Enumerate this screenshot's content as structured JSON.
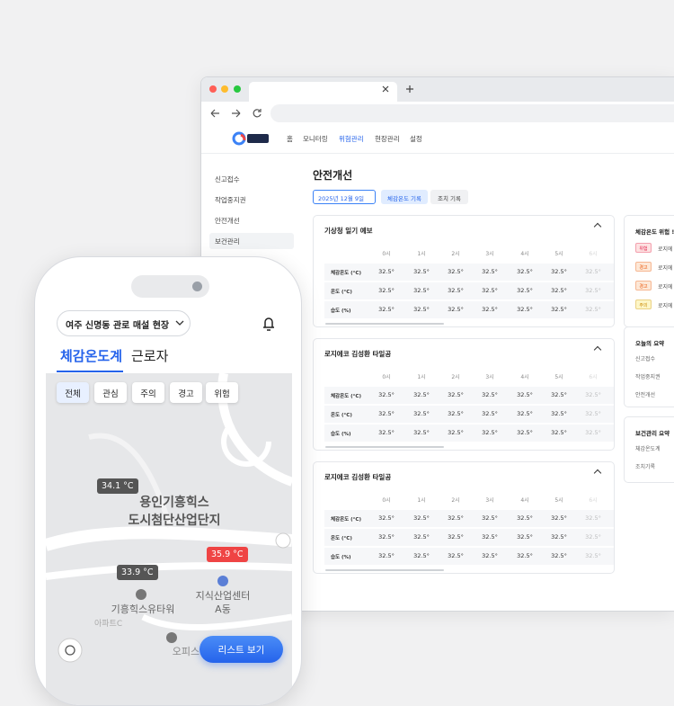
{
  "nav": {
    "items": [
      "홈",
      "모니터링",
      "위험관리",
      "현장관리",
      "설정"
    ],
    "active": 2
  },
  "sidebar": {
    "items": [
      "신고접수",
      "작업중지권",
      "안전개선",
      "보건관리"
    ],
    "active": 3
  },
  "page_title": "안전개선",
  "filters": {
    "date": "2025년 12월 9일",
    "buttons": [
      "체감온도 기록",
      "조치 기록"
    ]
  },
  "cards": [
    {
      "title": "기상청 일기 예보",
      "columns": [
        "0시",
        "1시",
        "2시",
        "3시",
        "4시",
        "5시",
        "6시"
      ],
      "rows": [
        {
          "label": "체감온도 (°C)",
          "values": [
            "32.5°",
            "32.5°",
            "32.5°",
            "32.5°",
            "32.5°",
            "32.5°",
            "32.5°"
          ]
        },
        {
          "label": "온도 (°C)",
          "values": [
            "32.5°",
            "32.5°",
            "32.5°",
            "32.5°",
            "32.5°",
            "32.5°",
            "32.5°"
          ]
        },
        {
          "label": "습도 (%)",
          "values": [
            "32.5°",
            "32.5°",
            "32.5°",
            "32.5°",
            "32.5°",
            "32.5°",
            "32.5°"
          ]
        }
      ]
    },
    {
      "title": "로지에코 김성환 타일공",
      "columns": [
        "0시",
        "1시",
        "2시",
        "3시",
        "4시",
        "5시",
        "6시"
      ],
      "rows": [
        {
          "label": "체감온도 (°C)",
          "values": [
            "32.5°",
            "32.5°",
            "32.5°",
            "32.5°",
            "32.5°",
            "32.5°",
            "32.5°"
          ]
        },
        {
          "label": "온도 (°C)",
          "values": [
            "32.5°",
            "32.5°",
            "32.5°",
            "32.5°",
            "32.5°",
            "32.5°",
            "32.5°"
          ]
        },
        {
          "label": "습도 (%)",
          "values": [
            "32.5°",
            "32.5°",
            "32.5°",
            "32.5°",
            "32.5°",
            "32.5°",
            "32.5°"
          ]
        }
      ]
    },
    {
      "title": "로지에코 김성환 타일공",
      "columns": [
        "0시",
        "1시",
        "2시",
        "3시",
        "4시",
        "5시",
        "6시"
      ],
      "rows": [
        {
          "label": "체감온도 (°C)",
          "values": [
            "32.5°",
            "32.5°",
            "32.5°",
            "32.5°",
            "32.5°",
            "32.5°",
            "32.5°"
          ]
        },
        {
          "label": "온도 (°C)",
          "values": [
            "32.5°",
            "32.5°",
            "32.5°",
            "32.5°",
            "32.5°",
            "32.5°",
            "32.5°"
          ]
        },
        {
          "label": "습도 (%)",
          "values": [
            "32.5°",
            "32.5°",
            "32.5°",
            "32.5°",
            "32.5°",
            "32.5°",
            "32.5°"
          ]
        }
      ]
    }
  ],
  "risk_panel": {
    "title": "체감온도 위험 !",
    "items": [
      {
        "badge": "위험",
        "text": "로지에"
      },
      {
        "badge": "경고",
        "text": "로지에"
      },
      {
        "badge": "경고",
        "text": "로지에"
      },
      {
        "badge": "주의",
        "text": "로지에"
      }
    ]
  },
  "summary_panel": {
    "title": "오늘의 요약",
    "items": [
      "신고접수",
      "작업중지권",
      "안전개선"
    ]
  },
  "health_panel": {
    "title": "보건관리 요약",
    "items": [
      "체감온도계",
      "조치기록"
    ]
  },
  "phone": {
    "location": "여주 신명동 관로 매설 현장",
    "tabs": [
      "체감온도계",
      "근로자"
    ],
    "chips": [
      "전체",
      "관심",
      "주의",
      "경고",
      "위험"
    ],
    "map_labels": {
      "complex": [
        "용인기흥힉스",
        "도시첨단산업단지"
      ],
      "tower": "기흥힉스유타워",
      "center": [
        "지식산업센터",
        "A동"
      ],
      "apt": "아파트C",
      "officetel": "오피스텔"
    },
    "markers": [
      "34.1 °C",
      "33.9 °C",
      "35.9 °C"
    ],
    "list_button": "리스트 보기"
  }
}
